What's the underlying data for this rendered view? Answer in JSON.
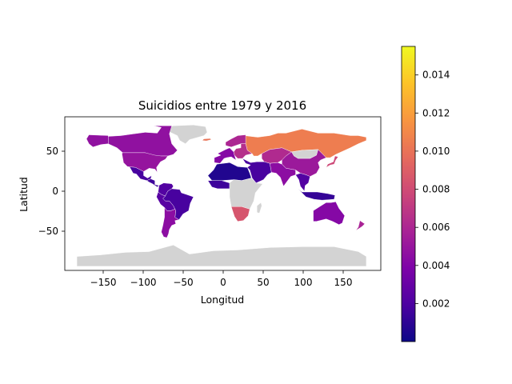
{
  "title": "Suicidios entre 1979 y 2016",
  "xlabel": "Longitud",
  "ylabel": "Latitud",
  "x_ticks": [
    "−150",
    "−100",
    "−50",
    "0",
    "50",
    "100",
    "150"
  ],
  "y_ticks": [
    "50",
    "0",
    "−50"
  ],
  "colorbar_ticks": [
    "0.002",
    "0.004",
    "0.006",
    "0.008",
    "0.010",
    "0.012",
    "0.014"
  ],
  "chart_data": {
    "type": "choropleth",
    "title": "Suicidios entre 1979 y 2016",
    "xlabel": "Longitud",
    "ylabel": "Latitud",
    "xlim": [
      -195,
      198
    ],
    "ylim": [
      -95,
      93
    ],
    "colormap": "plasma",
    "colorbar_range": [
      0.0,
      0.0155
    ],
    "no_data_color": "#d3d3d3",
    "regions": [
      {
        "name": "Greenland",
        "value": null
      },
      {
        "name": "Antarctica",
        "value": null
      },
      {
        "name": "Canada",
        "value": 0.0047
      },
      {
        "name": "Alaska",
        "value": 0.0047
      },
      {
        "name": "United States",
        "value": 0.0049
      },
      {
        "name": "Mexico",
        "value": 0.0018
      },
      {
        "name": "Central America",
        "value": 0.0015
      },
      {
        "name": "Colombia / Venezuela",
        "value": 0.0022
      },
      {
        "name": "Brazil",
        "value": 0.0018
      },
      {
        "name": "Peru / Bolivia",
        "value": 0.0024
      },
      {
        "name": "Argentina / Chile",
        "value": 0.0045
      },
      {
        "name": "Russia",
        "value": 0.0105
      },
      {
        "name": "Kazakhstan / Central Asia",
        "value": 0.0062
      },
      {
        "name": "Mongolia",
        "value": null
      },
      {
        "name": "China",
        "value": 0.0052
      },
      {
        "name": "Japan",
        "value": 0.0078
      },
      {
        "name": "Iceland",
        "value": 0.01
      },
      {
        "name": "Scandinavia",
        "value": 0.006
      },
      {
        "name": "Western Europe",
        "value": 0.0042
      },
      {
        "name": "Eastern Europe",
        "value": 0.0065
      },
      {
        "name": "North Africa",
        "value": 0.0006
      },
      {
        "name": "Middle East",
        "value": 0.0018
      },
      {
        "name": "West Africa",
        "value": 0.0015
      },
      {
        "name": "Sub-Saharan Africa",
        "value": null
      },
      {
        "name": "Southern Africa",
        "value": 0.0085
      },
      {
        "name": "Madagascar",
        "value": null
      },
      {
        "name": "South Asia",
        "value": 0.0045
      },
      {
        "name": "Southeast Asia",
        "value": 0.0022
      },
      {
        "name": "Indonesia",
        "value": 0.0012
      },
      {
        "name": "Australia",
        "value": 0.0042
      },
      {
        "name": "New Zealand",
        "value": 0.0058
      }
    ]
  }
}
